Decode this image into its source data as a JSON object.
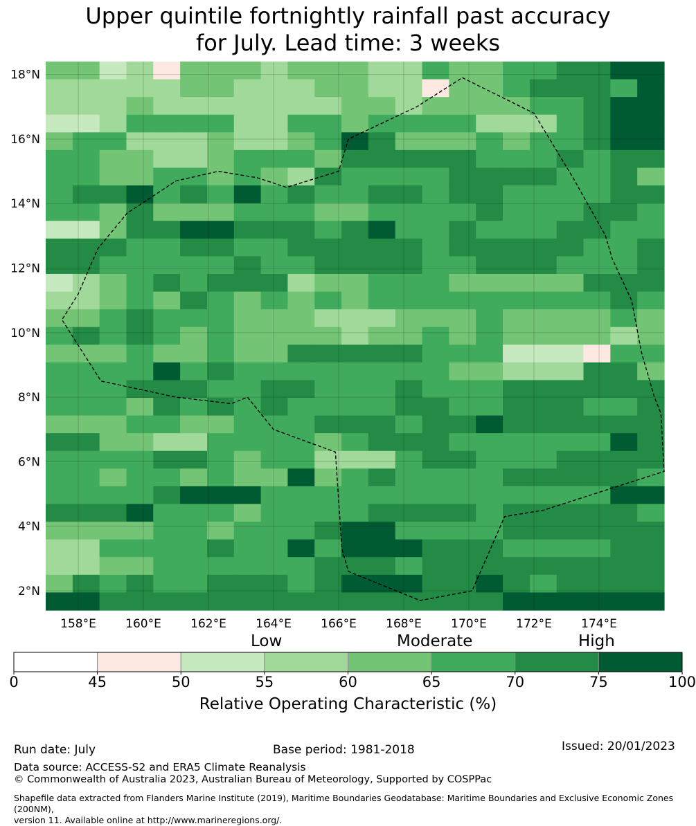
{
  "title_line1": "Upper quintile fortnightly rainfall past accuracy",
  "title_line2": "for July. Lead time: 3 weeks",
  "map": {
    "lon_range": [
      157,
      176
    ],
    "lat_range": [
      1.4,
      18.4
    ],
    "lon_ticks": [
      "158°E",
      "160°E",
      "162°E",
      "164°E",
      "166°E",
      "168°E",
      "170°E",
      "172°E",
      "174°E"
    ],
    "lat_ticks": [
      "18°N",
      "16°N",
      "14°N",
      "12°N",
      "10°N",
      "8°N",
      "6°N",
      "4°N",
      "2°N"
    ],
    "grid_cols": 23,
    "grid_rows": 31,
    "category_grid": [
      "44231444344433544556677",
      "33333443334433144566657",
      "33343333333443444455677",
      "22355553355455553335677",
      "45533343345764445455677",
      "55443345554666665556566",
      "55445545436555566665564",
      "56675657565566566555566",
      "55464445554455556555665",
      "22466776665675565556655",
      "66655665566666566666556",
      "66555556556666556665556",
      "23456566634455544444666",
      "33454654545455555555565",
      "44565554443334445444454",
      "56565454444344545444434",
      "44454454466666555222155",
      "55557565555555544333664",
      "55566655665556555666666",
      "55546565655556655666556",
      "44455445556665667666666",
      "66443355554566655555576",
      "55556654553335665556666",
      "55455454474565555666665",
      "55556777555555555555577",
      "66675554555566665666665",
      "44445545556775555666666",
      "33555565575777666555566",
      "33445555556665666666666",
      "46565566656777667656666",
      "77666666666666666777777"
    ],
    "eez_boundary": [
      [
        169.8,
        17.9
      ],
      [
        172.0,
        16.8
      ],
      [
        173.2,
        14.8
      ],
      [
        174.2,
        13.0
      ],
      [
        174.4,
        12.3
      ],
      [
        175.0,
        11.0
      ],
      [
        175.3,
        9.4
      ],
      [
        175.7,
        8.0
      ],
      [
        175.9,
        7.5
      ],
      [
        176.0,
        5.7
      ],
      [
        172.3,
        4.5
      ],
      [
        171.1,
        4.3
      ],
      [
        170.1,
        2.0
      ],
      [
        168.5,
        1.7
      ],
      [
        166.3,
        2.6
      ],
      [
        166.1,
        3.3
      ],
      [
        165.9,
        6.3
      ],
      [
        164.0,
        7.0
      ],
      [
        163.2,
        8.0
      ],
      [
        162.7,
        7.8
      ],
      [
        161.0,
        8.0
      ],
      [
        158.7,
        8.5
      ],
      [
        157.5,
        10.4
      ],
      [
        158.0,
        11.2
      ],
      [
        158.6,
        12.6
      ],
      [
        159.5,
        13.7
      ],
      [
        161.0,
        14.7
      ],
      [
        162.3,
        15.0
      ],
      [
        163.5,
        14.8
      ],
      [
        164.4,
        14.5
      ],
      [
        166.0,
        15.0
      ],
      [
        166.3,
        16.0
      ],
      [
        168.4,
        17.0
      ],
      [
        169.8,
        17.9
      ]
    ]
  },
  "colorbar": {
    "tick_labels": [
      "0",
      "45",
      "50",
      "55",
      "60",
      "65",
      "70",
      "75",
      "100"
    ],
    "colors": [
      "#ffffff",
      "#fee9e2",
      "#c7e9c0",
      "#a1d99b",
      "#74c476",
      "#41ab5d",
      "#238b45",
      "#005a32"
    ],
    "category_labels": [
      "Low",
      "Moderate",
      "High"
    ],
    "title": "Relative Operating Characteristic (%)"
  },
  "footer": {
    "run_date": "Run date: July",
    "base_period": "Base period: 1981-2018",
    "issued": "Issued: 20/01/2023",
    "data_source": "Data source: ACCESS-S2 and ERA5 Climate Reanalysis",
    "copyright": "© Commonwealth of Australia 2023, Australian Bureau of Meteorology, Supported by COSPPac",
    "shapefile_line1": "Shapefile data extracted from Flanders Marine Institute (2019), Maritime Boundaries Geodatabase: Maritime Boundaries and Exclusive Economic Zones (200NM),",
    "shapefile_line2": "version 11. Available online at http://www.marineregions.org/."
  }
}
